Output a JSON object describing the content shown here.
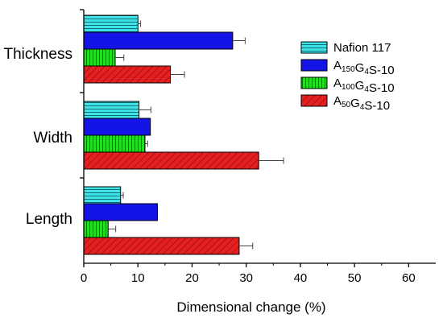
{
  "chart_data": {
    "type": "bar",
    "orientation": "horizontal",
    "categories": [
      "Thickness",
      "Width",
      "Length"
    ],
    "series": [
      {
        "name": "Nafion 117",
        "legend_parts": [
          [
            "Nafion 117",
            false
          ]
        ],
        "values": [
          10,
          10.2,
          6.8
        ],
        "errors": [
          0.5,
          2.2,
          0.5
        ],
        "color": "#3fe3e8",
        "pattern": "horizontal-lines"
      },
      {
        "name": "A150G4S-10",
        "legend_parts": [
          [
            "A",
            false
          ],
          [
            "150",
            true
          ],
          [
            "G",
            false
          ],
          [
            "4",
            true
          ],
          [
            "S-10",
            false
          ]
        ],
        "values": [
          27.5,
          12.3,
          null
        ],
        "errors": [
          2.3,
          null,
          null
        ],
        "color": "#1414e6",
        "pattern": "solid"
      },
      {
        "name": "A100G4S-10",
        "legend_parts": [
          [
            "A",
            false
          ],
          [
            "100",
            true
          ],
          [
            "G",
            false
          ],
          [
            "4",
            true
          ],
          [
            "S-10",
            false
          ]
        ],
        "values": [
          5.8,
          11.3,
          4.5
        ],
        "errors": [
          1.6,
          0.5,
          1.4
        ],
        "color": "#22dd22",
        "pattern": "vertical-lines"
      },
      {
        "name": "A50G4S-10",
        "legend_parts": [
          [
            "A",
            false
          ],
          [
            "50",
            true
          ],
          [
            "G",
            false
          ],
          [
            "4",
            true
          ],
          [
            "S-10",
            false
          ]
        ],
        "values": [
          16,
          32.3,
          28.7
        ],
        "errors": [
          2.6,
          4.6,
          2.5
        ],
        "color": "#e62020",
        "pattern": "diagonal-lines"
      }
    ],
    "length_blue_value": 13.6,
    "xlabel": "Dimensional change (%)",
    "ylabel": "",
    "xlim": [
      0,
      65
    ],
    "xticks": [
      "0",
      "10",
      "20",
      "30",
      "40",
      "50",
      "60"
    ],
    "grid": false,
    "legend_position": "top-right"
  }
}
